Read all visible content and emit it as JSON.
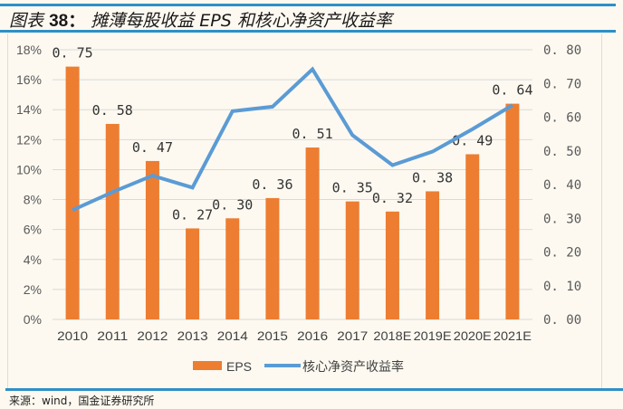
{
  "figure": {
    "title_prefix": "图表",
    "title_number": "38：",
    "title_text": "摊薄每股收益 EPS 和核心净资产收益率",
    "source": "来源：wind，国金证券研究所"
  },
  "colors": {
    "bar": "#ED7D31",
    "line": "#5B9BD5",
    "rule": "#2E8FC7",
    "grid": "#D9D9D9",
    "text": "#595959"
  },
  "chart_data": {
    "type": "bar+line",
    "title": "摊薄每股收益 EPS 和核心净资产收益率",
    "categories": [
      "2010",
      "2011",
      "2012",
      "2013",
      "2014",
      "2015",
      "2016",
      "2017",
      "2018E",
      "2019E",
      "2020E",
      "2021E"
    ],
    "series": [
      {
        "name": "EPS",
        "type": "bar",
        "axis": "right",
        "values": [
          0.75,
          0.58,
          0.47,
          0.27,
          0.3,
          0.36,
          0.51,
          0.35,
          0.32,
          0.38,
          0.49,
          0.64
        ],
        "labels": [
          "0.75",
          "0.58",
          "0.47",
          "0.27",
          "0.30",
          "0.36",
          "0.51",
          "0.35",
          "0.32",
          "0.38",
          "0.49",
          "0.64"
        ]
      },
      {
        "name": "核心净资产收益率",
        "type": "line",
        "axis": "left",
        "values": [
          7.3,
          8.5,
          9.6,
          8.8,
          13.9,
          14.2,
          16.7,
          12.3,
          10.3,
          11.2,
          12.7,
          14.3
        ]
      }
    ],
    "left_axis": {
      "ylim": [
        0,
        18
      ],
      "ticks": [
        "0%",
        "2%",
        "4%",
        "6%",
        "8%",
        "10%",
        "12%",
        "14%",
        "16%",
        "18%"
      ]
    },
    "right_axis": {
      "ylim": [
        0,
        0.8
      ],
      "ticks": [
        "0.00",
        "0.10",
        "0.20",
        "0.30",
        "0.40",
        "0.50",
        "0.60",
        "0.70",
        "0.80"
      ]
    },
    "grid": true,
    "legend": {
      "position": "bottom",
      "entries": [
        "EPS",
        "核心净资产收益率"
      ]
    }
  }
}
